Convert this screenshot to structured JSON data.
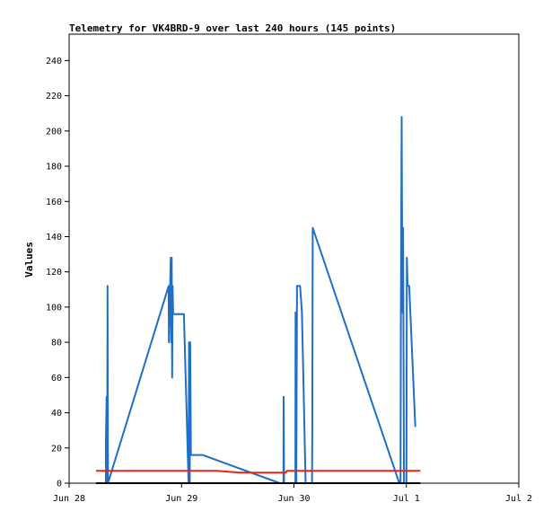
{
  "chart_data": {
    "type": "line",
    "title": "Telemetry for VK4BRD-9 over last 240 hours (145 points)",
    "ylabel": "Values",
    "xlabel": "",
    "ylim": [
      0,
      255
    ],
    "xlim": [
      0,
      192
    ],
    "x_unit": "hours since Jun 28 00:00",
    "xticks": [
      {
        "value": 0,
        "label": "Jun 28"
      },
      {
        "value": 48,
        "label": "Jun 29"
      },
      {
        "value": 96,
        "label": "Jun 30"
      },
      {
        "value": 144,
        "label": "Jul 1"
      },
      {
        "value": 192,
        "label": "Jul 2"
      }
    ],
    "yticks": [
      0,
      20,
      40,
      60,
      80,
      100,
      120,
      140,
      160,
      180,
      200,
      220,
      240
    ],
    "grid": false,
    "series": [
      {
        "color": "#1f6fc6",
        "values": [
          [
            15.7,
            0
          ],
          [
            15.7,
            25
          ],
          [
            16.0,
            49
          ],
          [
            16.3,
            0
          ],
          [
            16.4,
            112
          ],
          [
            16.6,
            0
          ],
          [
            42.5,
            112
          ],
          [
            42.6,
            80
          ],
          [
            43.4,
            128
          ],
          [
            43.6,
            80
          ],
          [
            43.8,
            128
          ],
          [
            44.0,
            60
          ],
          [
            44.2,
            112
          ],
          [
            44.4,
            96
          ],
          [
            49.0,
            96
          ],
          [
            51.0,
            0
          ],
          [
            51.2,
            80
          ],
          [
            51.5,
            0
          ],
          [
            51.7,
            80
          ],
          [
            52.0,
            16
          ],
          [
            57.0,
            16
          ],
          [
            90.0,
            0
          ],
          [
            91.5,
            0
          ],
          [
            91.6,
            49
          ],
          [
            91.8,
            0
          ],
          [
            96.6,
            0
          ],
          [
            96.7,
            97
          ],
          [
            97.0,
            0
          ],
          [
            97.3,
            112
          ],
          [
            98.6,
            112
          ],
          [
            99.4,
            97
          ],
          [
            101.0,
            0
          ],
          [
            103.7,
            0
          ],
          [
            103.8,
            25
          ],
          [
            104.0,
            145
          ],
          [
            141.0,
            0
          ],
          [
            141.5,
            0
          ],
          [
            141.7,
            104
          ],
          [
            142.0,
            208
          ],
          [
            142.3,
            97
          ],
          [
            142.6,
            145
          ],
          [
            143.0,
            0
          ],
          [
            144.0,
            0
          ],
          [
            144.2,
            128
          ],
          [
            144.5,
            112
          ],
          [
            145.2,
            112
          ],
          [
            147.8,
            32
          ]
        ]
      },
      {
        "color": "#e8231c",
        "values": [
          [
            11.5,
            7
          ],
          [
            63.0,
            7
          ],
          [
            73.0,
            6
          ],
          [
            92.5,
            6
          ],
          [
            93.0,
            7
          ],
          [
            150.0,
            7
          ]
        ]
      },
      {
        "color": "#000000",
        "values": [
          [
            11.5,
            0
          ],
          [
            150.0,
            0
          ]
        ]
      }
    ]
  }
}
